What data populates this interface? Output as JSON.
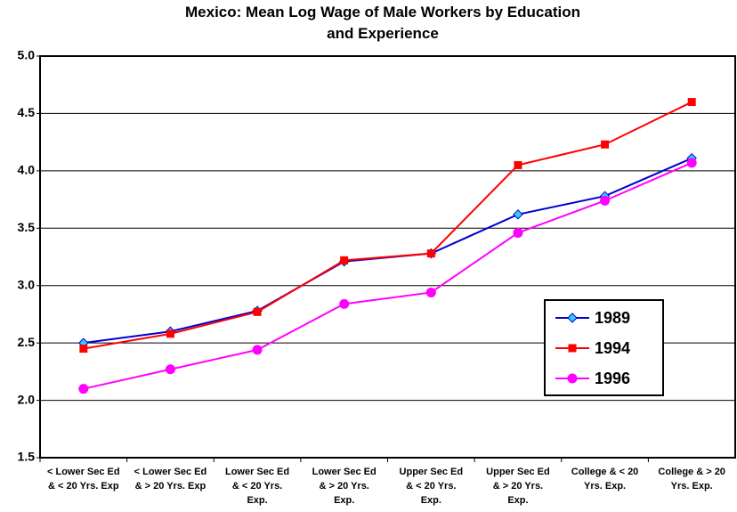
{
  "chart_data": {
    "type": "line",
    "title": "Mexico: Mean Log Wage of Male Workers by Education and Experience",
    "categories": [
      "< Lower Sec Ed & < 20 Yrs. Exp",
      "< Lower Sec Ed & > 20 Yrs. Exp",
      "Lower Sec Ed & < 20 Yrs. Exp.",
      "Lower Sec Ed & > 20 Yrs. Exp.",
      "Upper Sec Ed & < 20 Yrs. Exp.",
      "Upper Sec Ed & > 20 Yrs. Exp.",
      "College & < 20 Yrs. Exp.",
      "College & > 20 Yrs. Exp."
    ],
    "series": [
      {
        "name": "1989",
        "color": "#0000cc",
        "marker": "diamond",
        "marker_color": "#33ccff",
        "values": [
          2.5,
          2.6,
          2.78,
          3.21,
          3.28,
          3.62,
          3.78,
          4.11
        ]
      },
      {
        "name": "1994",
        "color": "#ff0000",
        "marker": "square",
        "marker_color": "#ff0000",
        "values": [
          2.45,
          2.58,
          2.77,
          3.22,
          3.28,
          4.05,
          4.23,
          4.6
        ]
      },
      {
        "name": "1996",
        "color": "#ff00ff",
        "marker": "circle",
        "marker_color": "#ff00ff",
        "values": [
          2.1,
          2.27,
          2.44,
          2.84,
          2.94,
          3.46,
          3.74,
          4.07
        ]
      }
    ],
    "ylim": [
      1.5,
      5.0
    ],
    "yticks": [
      1.5,
      {
        "value": 2,
        "label": "2.0"
      },
      2.5,
      {
        "value": 3,
        "label": "3.0"
      },
      3.5,
      {
        "value": 4,
        "label": "4.0"
      },
      4.5,
      {
        "value": 5,
        "label": "5.0"
      }
    ],
    "grid": true
  }
}
